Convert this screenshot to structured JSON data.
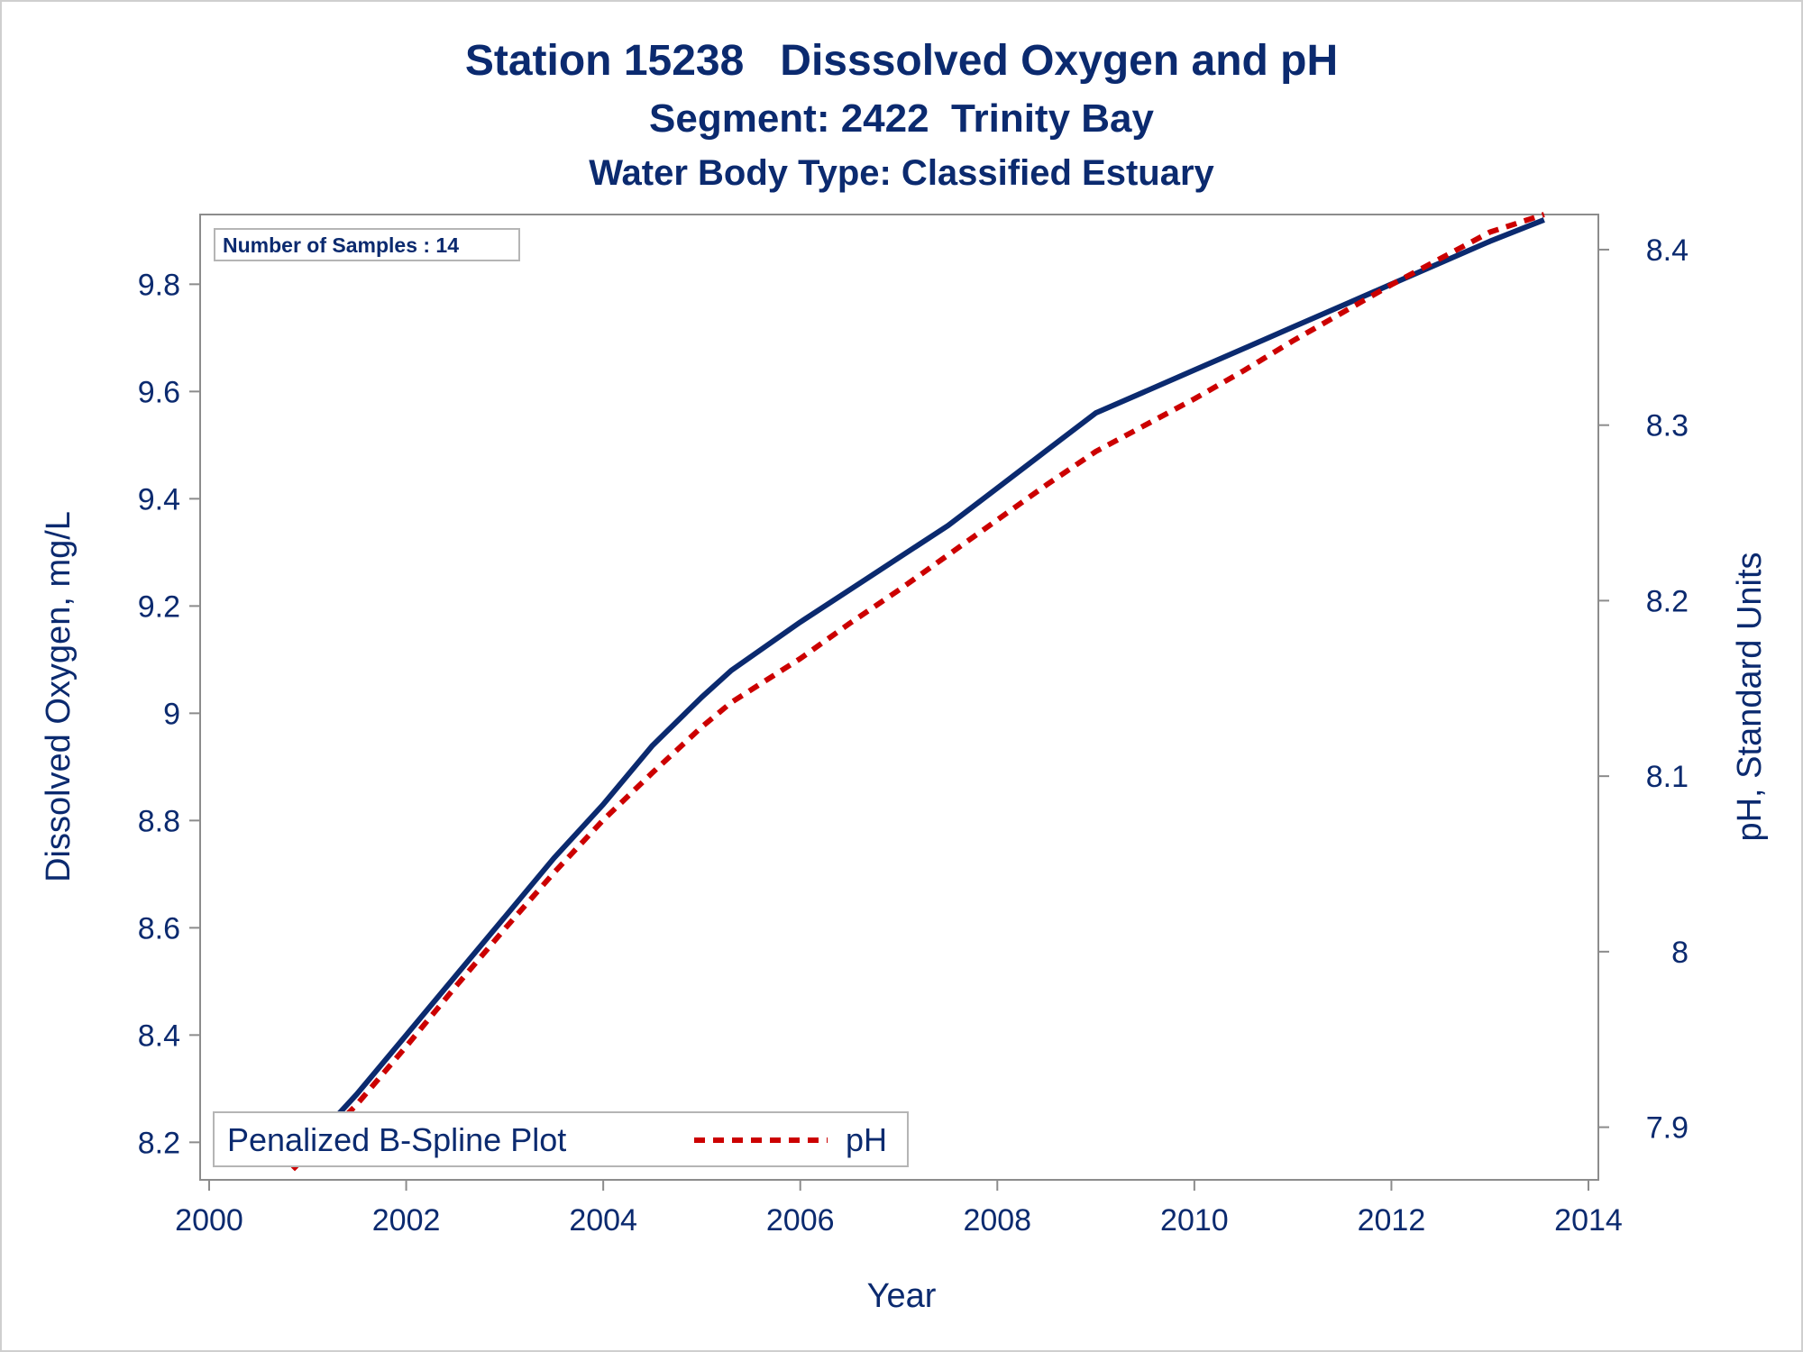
{
  "chart_data": {
    "type": "line",
    "title": "Station 15238   Disssolved Oxygen and pH",
    "subtitle": "Segment: 2422  Trinity Bay",
    "subtitle2": "Water Body Type: Classified Estuary",
    "xlabel": "Year",
    "ylabel": "Dissolved Oxygen, mg/L",
    "y2label": "pH, Standard Units",
    "xlim": [
      2000,
      2014
    ],
    "ylim": [
      8.13,
      9.93
    ],
    "y2lim": [
      7.87,
      8.42
    ],
    "x_ticks": [
      2000,
      2002,
      2004,
      2006,
      2008,
      2010,
      2012,
      2014
    ],
    "y_ticks": [
      8.2,
      8.4,
      8.6,
      8.8,
      9,
      9.2,
      9.4,
      9.6,
      9.8
    ],
    "y2_ticks": [
      7.9,
      8,
      8.1,
      8.2,
      8.3,
      8.4
    ],
    "x_tick_labels": [
      "2000",
      "2002",
      "2004",
      "2006",
      "2008",
      "2010",
      "2012",
      "2014"
    ],
    "y_tick_labels": [
      "8.2",
      "8.4",
      "8.6",
      "8.8",
      "9",
      "9.2",
      "9.4",
      "9.6",
      "9.8"
    ],
    "y2_tick_labels": [
      "7.9",
      "8",
      "8.1",
      "8.2",
      "8.3",
      "8.4"
    ],
    "inset": "Number of Samples : 14",
    "legend_title": "Penalized B-Spline Plot",
    "legend_position": "bottom-left",
    "grid": false,
    "series": [
      {
        "name": "",
        "axis": "y",
        "color": "#0b2a6f",
        "style": "solid",
        "x": [
          2000.85,
          2001.5,
          2002.0,
          2002.5,
          2003.0,
          2003.5,
          2004.0,
          2004.5,
          2005.0,
          2005.3,
          2006.0,
          2006.5,
          2007.0,
          2007.5,
          2008.0,
          2008.5,
          2009.0,
          2009.5,
          2010.0,
          2010.5,
          2011.0,
          2011.5,
          2012.0,
          2012.5,
          2013.0,
          2013.55
        ],
        "values": [
          8.16,
          8.29,
          8.4,
          8.51,
          8.62,
          8.73,
          8.83,
          8.94,
          9.03,
          9.08,
          9.17,
          9.23,
          9.29,
          9.35,
          9.42,
          9.49,
          9.56,
          9.6,
          9.64,
          9.68,
          9.72,
          9.76,
          9.8,
          9.84,
          9.88,
          9.92
        ]
      },
      {
        "name": "pH",
        "axis": "y2",
        "color": "#cc0000",
        "style": "dashed",
        "x": [
          2000.85,
          2001.5,
          2002.0,
          2002.5,
          2003.0,
          2003.5,
          2004.0,
          2004.5,
          2005.0,
          2005.3,
          2006.0,
          2006.5,
          2007.0,
          2007.5,
          2008.0,
          2008.5,
          2009.0,
          2009.5,
          2010.0,
          2010.5,
          2011.0,
          2011.5,
          2012.0,
          2012.5,
          2013.0,
          2013.55
        ],
        "values": [
          7.876,
          7.913,
          7.946,
          7.98,
          8.013,
          8.045,
          8.075,
          8.102,
          8.128,
          8.142,
          8.167,
          8.187,
          8.206,
          8.226,
          8.246,
          8.266,
          8.285,
          8.3,
          8.315,
          8.331,
          8.348,
          8.364,
          8.38,
          8.395,
          8.41,
          8.42
        ]
      }
    ]
  }
}
